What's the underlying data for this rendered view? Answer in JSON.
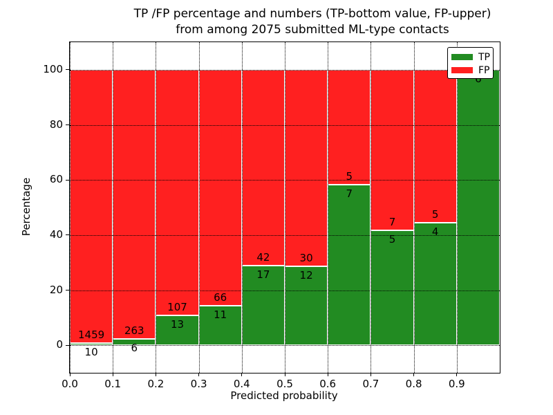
{
  "title": {
    "line1": "TP /FP percentage and numbers (TP-bottom value, FP-upper)",
    "line2": "from among 2075 submitted ML-type contacts"
  },
  "chart_data": {
    "type": "bar",
    "stacked": true,
    "stack_total_percent": 100,
    "xlabel": "Predicted probability",
    "ylabel": "Percentage",
    "xlim": [
      0,
      1.0
    ],
    "ylim": [
      -10,
      110
    ],
    "bin_width": 0.1,
    "x_tick_values": [
      0.0,
      0.1,
      0.2,
      0.3,
      0.4,
      0.5,
      0.6,
      0.7,
      0.8,
      0.9
    ],
    "x_tick_labels": [
      "0.0",
      "0.1",
      "0.2",
      "0.3",
      "0.4",
      "0.5",
      "0.6",
      "0.7",
      "0.8",
      "0.9"
    ],
    "y_tick_values": [
      0,
      20,
      40,
      60,
      80,
      100
    ],
    "y_tick_labels": [
      "0",
      "20",
      "40",
      "60",
      "80",
      "100"
    ],
    "grid": {
      "style": "dotted",
      "color": "#000000"
    },
    "colors": {
      "tp": "#228b22",
      "fp": "#ff2020",
      "bar_edge": "#ffffff",
      "text": "#000000"
    },
    "legend": {
      "location": "upper right",
      "entries": [
        {
          "label": "TP",
          "color": "#228b22"
        },
        {
          "label": "FP",
          "color": "#ff2020"
        }
      ]
    },
    "bars": [
      {
        "x0": 0.0,
        "x1": 0.1,
        "tp_count": 10,
        "fp_count": 1459,
        "tp_percent": 0.68
      },
      {
        "x0": 0.1,
        "x1": 0.2,
        "tp_count": 6,
        "fp_count": 263,
        "tp_percent": 2.23
      },
      {
        "x0": 0.2,
        "x1": 0.3,
        "tp_count": 13,
        "fp_count": 107,
        "tp_percent": 10.83
      },
      {
        "x0": 0.3,
        "x1": 0.4,
        "tp_count": 11,
        "fp_count": 66,
        "tp_percent": 14.29
      },
      {
        "x0": 0.4,
        "x1": 0.5,
        "tp_count": 17,
        "fp_count": 42,
        "tp_percent": 28.81
      },
      {
        "x0": 0.5,
        "x1": 0.6,
        "tp_count": 12,
        "fp_count": 30,
        "tp_percent": 28.57
      },
      {
        "x0": 0.6,
        "x1": 0.7,
        "tp_count": 7,
        "fp_count": 5,
        "tp_percent": 58.33
      },
      {
        "x0": 0.7,
        "x1": 0.8,
        "tp_count": 5,
        "fp_count": 7,
        "tp_percent": 41.67
      },
      {
        "x0": 0.8,
        "x1": 0.9,
        "tp_count": 4,
        "fp_count": 5,
        "tp_percent": 44.44
      },
      {
        "x0": 0.9,
        "x1": 1.0,
        "tp_count": 6,
        "fp_count": null,
        "tp_percent": 100.0
      }
    ]
  }
}
